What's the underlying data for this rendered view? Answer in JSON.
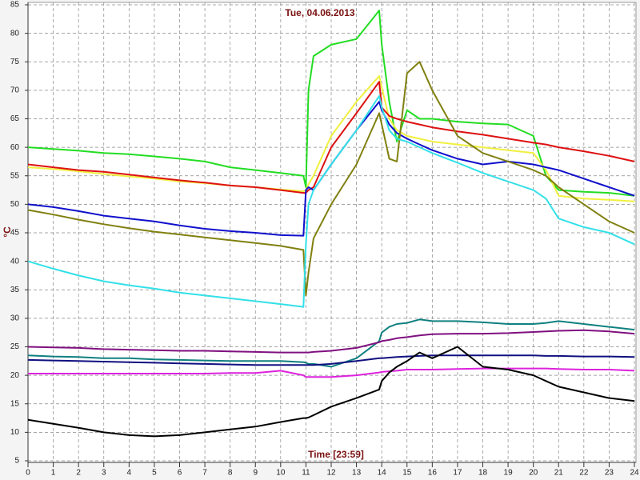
{
  "chart_data": {
    "type": "line",
    "title": "Tue, 04.06.2013",
    "x_label": "Time [23:59]",
    "y_label": "°C",
    "x": [
      0,
      1,
      2,
      3,
      4,
      5,
      6,
      7,
      8,
      9,
      10,
      10.9,
      11,
      11.1,
      11.3,
      12,
      13,
      13.9,
      14,
      14.3,
      14.6,
      15,
      15.5,
      16,
      17,
      18,
      19,
      20,
      20.5,
      21,
      22,
      23,
      24
    ],
    "xlim": [
      0,
      24
    ],
    "xticks": [
      0,
      1,
      2,
      3,
      4,
      5,
      6,
      7,
      8,
      9,
      10,
      11,
      12,
      13,
      14,
      15,
      16,
      17,
      18,
      19,
      20,
      21,
      22,
      23,
      24
    ],
    "ylim": [
      5,
      85
    ],
    "yticks": [
      5,
      10,
      15,
      20,
      25,
      30,
      35,
      40,
      45,
      50,
      55,
      60,
      65,
      70,
      75,
      80,
      85
    ],
    "grid": true,
    "series": [
      {
        "color": "#22dd22",
        "values": [
          60,
          59.7,
          59.4,
          59,
          58.8,
          58.4,
          58,
          57.5,
          56.5,
          56,
          55.5,
          55,
          53,
          70,
          76,
          78,
          79,
          84,
          78,
          68,
          61,
          66.5,
          65,
          65,
          64.5,
          64.2,
          64,
          62,
          55,
          52.5,
          52.2,
          52,
          51.5
        ]
      },
      {
        "color": "#f0f040",
        "values": [
          56.5,
          56.2,
          55.8,
          55.3,
          54.9,
          54.5,
          54,
          53.7,
          53.3,
          53,
          52.6,
          52.3,
          52.5,
          53.5,
          55,
          62,
          68,
          72.5,
          70.5,
          65,
          63,
          62,
          61.5,
          61,
          60.5,
          60,
          59.5,
          59,
          56,
          51.5,
          51,
          50.8,
          50.5
        ]
      },
      {
        "color": "#dd1111",
        "values": [
          57,
          56.5,
          56,
          55.7,
          55.2,
          54.7,
          54.2,
          53.8,
          53.3,
          53,
          52.5,
          52,
          52,
          52.5,
          53,
          60,
          66,
          71.5,
          67,
          65.5,
          65,
          64.5,
          64,
          63.5,
          62.8,
          62.2,
          61.5,
          60.8,
          60.5,
          60,
          59.3,
          58.5,
          57.5
        ]
      },
      {
        "color": "#1010cc",
        "values": [
          50,
          49.5,
          48.8,
          48,
          47.5,
          47,
          46.3,
          45.7,
          45.3,
          45,
          44.6,
          44.5,
          52.5,
          53,
          52.5,
          57,
          63,
          68,
          66.5,
          64,
          62.5,
          61.5,
          60.5,
          59.5,
          58,
          57,
          57.5,
          57,
          56.5,
          56,
          54.5,
          53,
          51.5
        ]
      },
      {
        "color": "#808010",
        "values": [
          49,
          48.2,
          47.3,
          46.5,
          45.8,
          45.2,
          44.7,
          44.2,
          43.7,
          43.2,
          42.7,
          42,
          34,
          38,
          44,
          50,
          57,
          66,
          64,
          58,
          57.5,
          73,
          75,
          70,
          62,
          59,
          57.5,
          56,
          55,
          53,
          50,
          47,
          45
        ]
      },
      {
        "color": "#33e0e8",
        "values": [
          40,
          38.7,
          37.5,
          36.5,
          35.8,
          35.2,
          34.5,
          34,
          33.5,
          33,
          32.5,
          32,
          43,
          50,
          52.5,
          57,
          63,
          69,
          67,
          63,
          61.5,
          61,
          60,
          59,
          57.3,
          55.5,
          54,
          52.5,
          51,
          47.5,
          46,
          45,
          43
        ]
      },
      {
        "color": "#108080",
        "values": [
          23.5,
          23.3,
          23.2,
          23,
          23,
          22.8,
          22.7,
          22.6,
          22.5,
          22.5,
          22.5,
          22.3,
          22.2,
          22,
          22,
          21.5,
          23,
          26,
          27.5,
          28.5,
          29,
          29.2,
          29.8,
          29.5,
          29.5,
          29.3,
          29,
          29,
          29.2,
          29.5,
          29,
          28.5,
          28
        ]
      },
      {
        "color": "#801080",
        "values": [
          25,
          24.9,
          24.8,
          24.6,
          24.5,
          24.4,
          24.3,
          24.3,
          24.2,
          24.1,
          24,
          24,
          24,
          24,
          24.1,
          24.3,
          24.8,
          25.8,
          26,
          26.2,
          26.5,
          26.7,
          27,
          27.2,
          27.3,
          27.3,
          27.4,
          27.6,
          27.7,
          27.8,
          27.9,
          27.7,
          27.3
        ]
      },
      {
        "color": "#101080",
        "values": [
          22.7,
          22.6,
          22.5,
          22.4,
          22.3,
          22.2,
          22.1,
          22,
          21.9,
          21.8,
          21.8,
          21.8,
          21.8,
          21.8,
          21.8,
          22,
          22.5,
          23,
          23,
          23.1,
          23.2,
          23.3,
          23.4,
          23.5,
          23.5,
          23.5,
          23.5,
          23.5,
          23.4,
          23.4,
          23.3,
          23.3,
          23.2
        ]
      },
      {
        "color": "#dd22dd",
        "values": [
          20.3,
          20.3,
          20.3,
          20.3,
          20.3,
          20.3,
          20.3,
          20.3,
          20.4,
          20.4,
          20.8,
          20,
          19.7,
          19.7,
          19.7,
          19.7,
          20,
          20.5,
          20.6,
          20.7,
          20.8,
          21,
          21,
          21,
          21.1,
          21.2,
          21.2,
          21.2,
          21.2,
          21.1,
          21,
          21,
          20.8
        ]
      },
      {
        "color": "#000000",
        "values": [
          12.2,
          11.5,
          10.8,
          10,
          9.5,
          9.3,
          9.5,
          10,
          10.5,
          11,
          11.8,
          12.5,
          12.5,
          12.6,
          13,
          14.5,
          16,
          17.5,
          19,
          20.5,
          21.5,
          22.5,
          24,
          23,
          25,
          21.5,
          21,
          20,
          19,
          18,
          17,
          16,
          15.5
        ]
      }
    ]
  }
}
